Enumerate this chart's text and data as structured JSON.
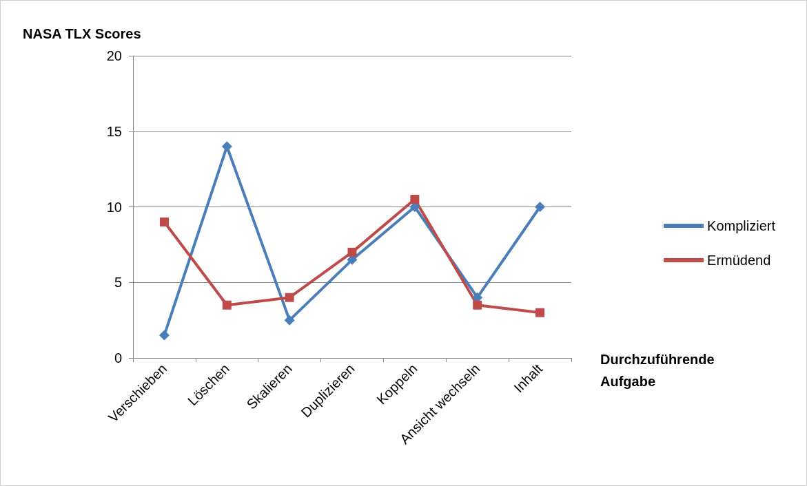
{
  "chart_data": {
    "type": "line",
    "ylabel": "NASA TLX Scores",
    "xlabel": "Durchzuführende Aufgabe",
    "categories": [
      "Verschieben",
      "Löschen",
      "Skalieren",
      "Duplizieren",
      "Koppeln",
      "Ansicht wechseln",
      "Inhalt"
    ],
    "series": [
      {
        "name": "Kompliziert",
        "color": "#4a7ebb",
        "marker": "diamond",
        "values": [
          1.5,
          14,
          2.5,
          6.5,
          10,
          4,
          10
        ]
      },
      {
        "name": "Ermüdend",
        "color": "#be4b48",
        "marker": "square",
        "values": [
          9,
          3.5,
          4,
          7,
          10.5,
          3.5,
          3
        ]
      }
    ],
    "ylim": [
      0,
      20
    ],
    "yticks": [
      0,
      5,
      10,
      15,
      20
    ],
    "grid": "y",
    "legend": "right",
    "line_style": "solid"
  }
}
